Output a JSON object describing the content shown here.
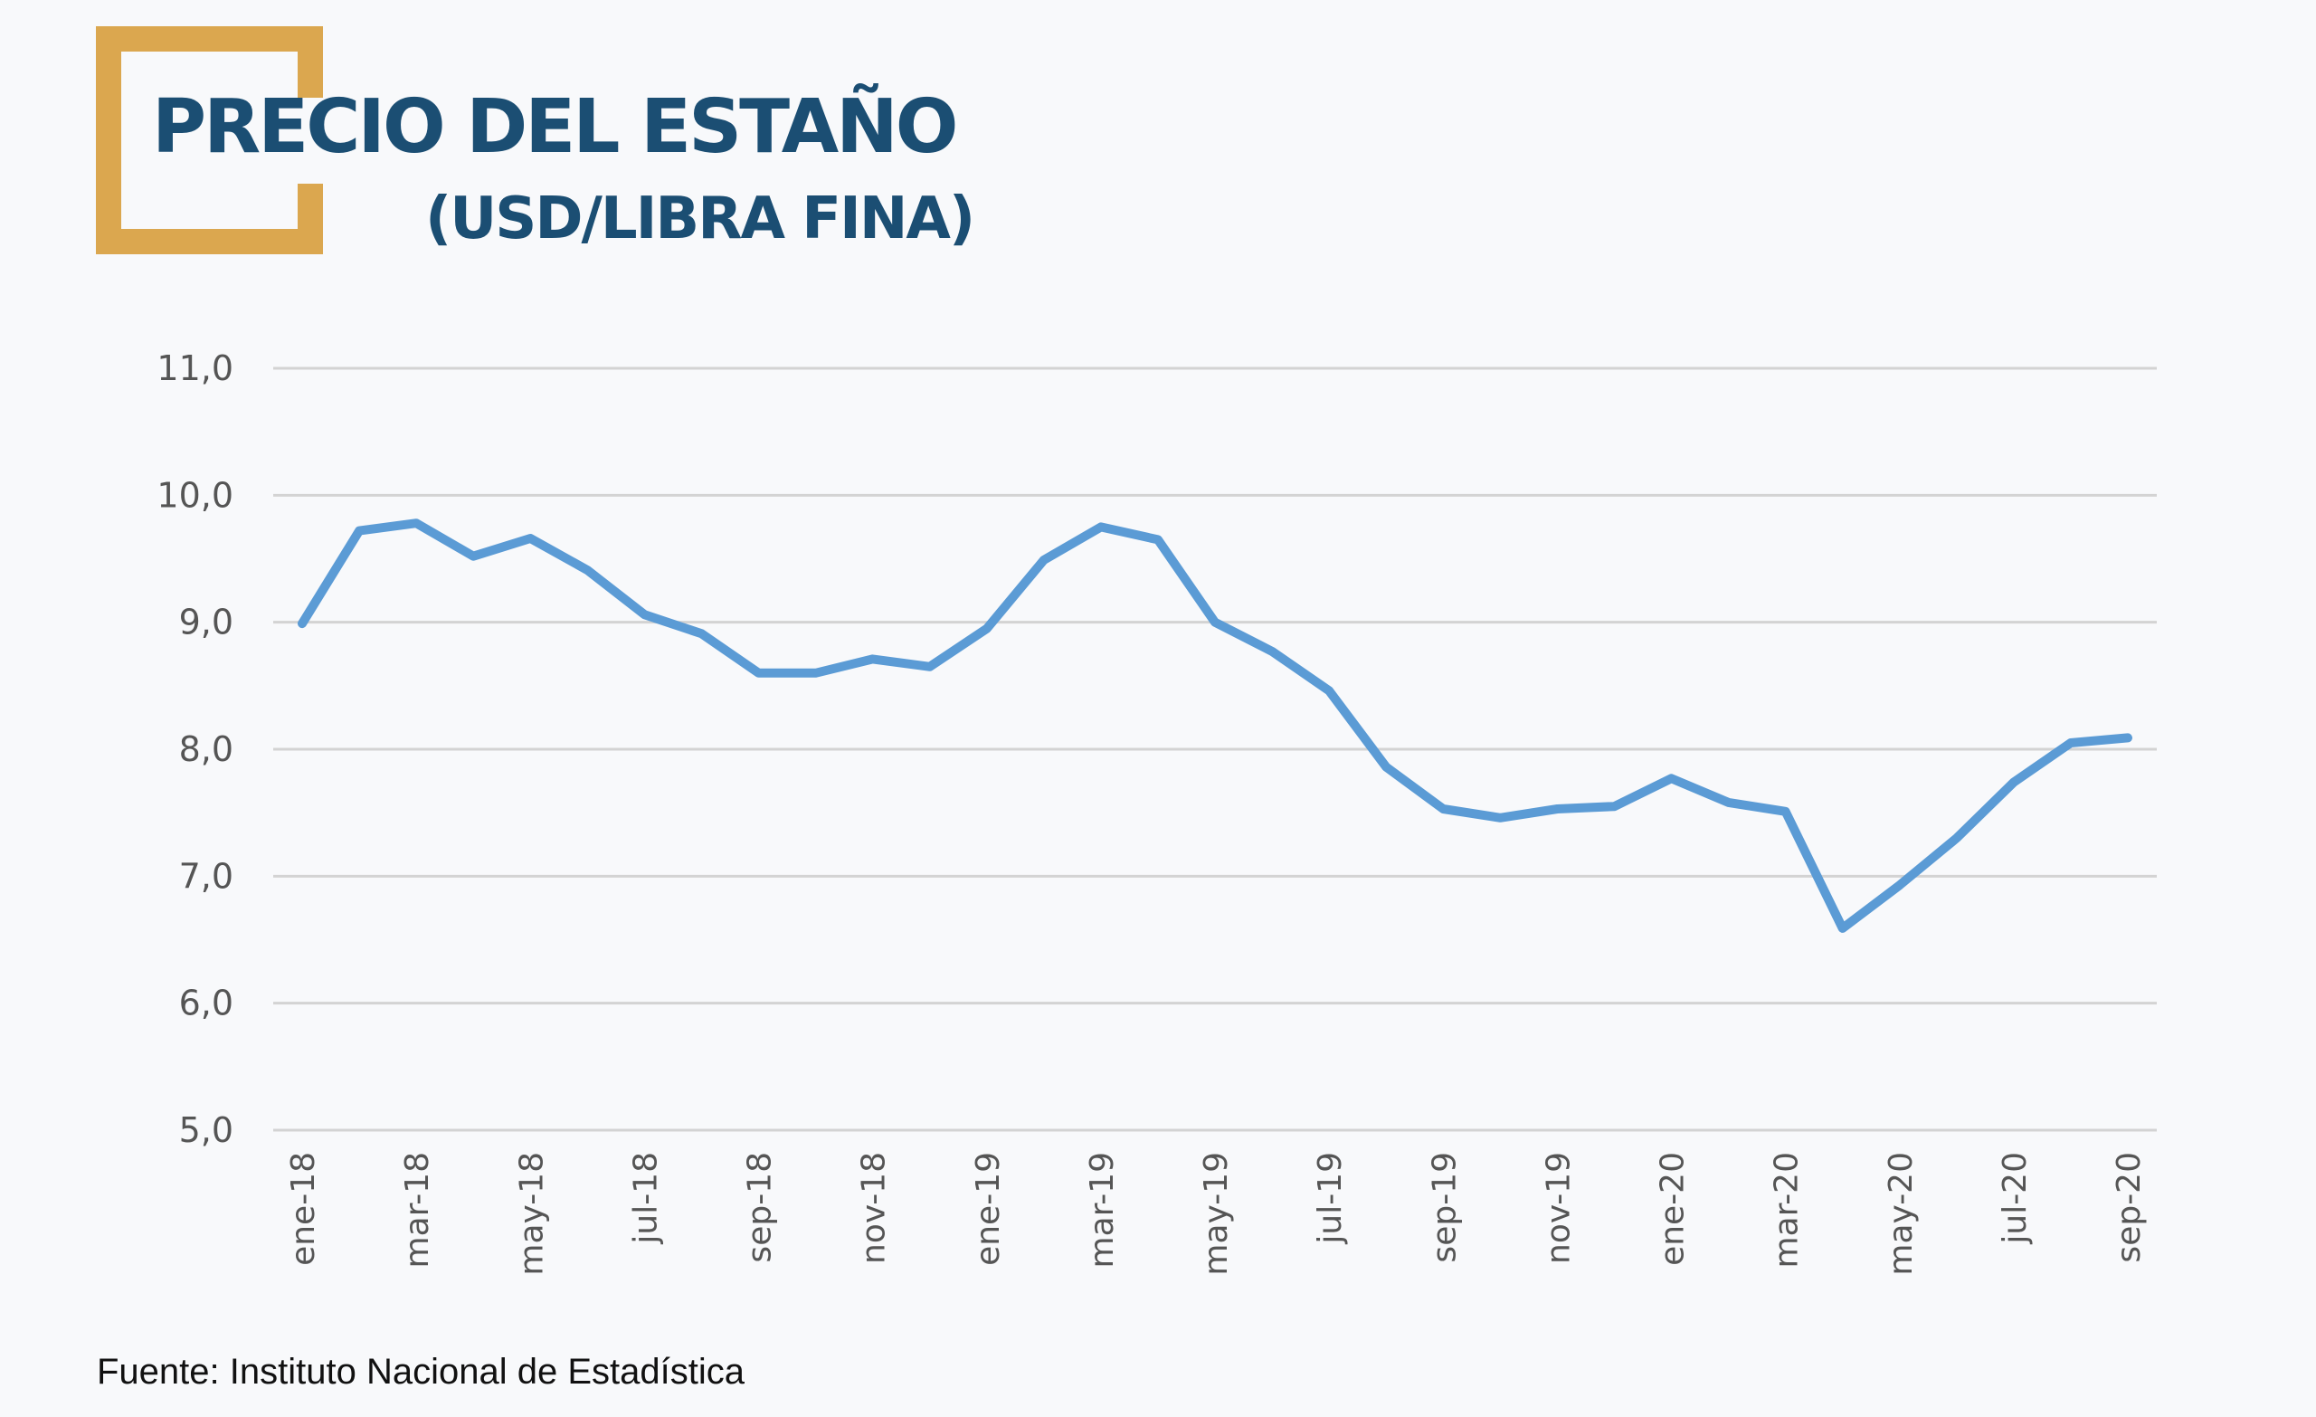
{
  "header": {
    "title": "PRECIO DEL ESTAÑO",
    "subtitle": "(USD/LIBRA FINA)",
    "accent_color": "#dba74f",
    "title_color": "#1b4e73"
  },
  "source_note": "Fuente: Instituto Nacional de Estadística",
  "chart_data": {
    "type": "line",
    "title": "PRECIO DEL ESTAÑO",
    "subtitle": "(USD/LIBRA FINA)",
    "xlabel": "",
    "ylabel": "",
    "ylim": [
      5.0,
      11.0
    ],
    "yticks": [
      "5,0",
      "6,0",
      "7,0",
      "8,0",
      "9,0",
      "10,0",
      "11,0"
    ],
    "ytick_values": [
      5,
      6,
      7,
      8,
      9,
      10,
      11
    ],
    "grid": true,
    "line_color": "#5b9bd5",
    "categories": [
      "ene-18",
      "feb-18",
      "mar-18",
      "abr-18",
      "may-18",
      "jun-18",
      "jul-18",
      "ago-18",
      "sep-18",
      "oct-18",
      "nov-18",
      "dic-18",
      "ene-19",
      "feb-19",
      "mar-19",
      "abr-19",
      "may-19",
      "jun-19",
      "jul-19",
      "ago-19",
      "sep-19",
      "oct-19",
      "nov-19",
      "dic-19",
      "ene-20",
      "feb-20",
      "mar-20",
      "abr-20",
      "may-20",
      "jun-20",
      "jul-20",
      "ago-20",
      "sep-20"
    ],
    "xtick_labels": [
      "ene-18",
      "mar-18",
      "may-18",
      "jul-18",
      "sep-18",
      "nov-18",
      "ene-19",
      "mar-19",
      "may-19",
      "jul-19",
      "sep-19",
      "nov-19",
      "ene-20",
      "mar-20",
      "may-20",
      "jul-20",
      "sep-20"
    ],
    "series": [
      {
        "values": [
          8.99,
          9.72,
          9.78,
          9.52,
          9.66,
          9.41,
          9.06,
          8.91,
          8.6,
          8.6,
          8.71,
          8.65,
          8.95,
          9.49,
          9.75,
          9.65,
          9.0,
          8.77,
          8.46,
          7.86,
          7.53,
          7.46,
          7.53,
          7.55,
          7.77,
          7.58,
          7.51,
          6.59,
          6.93,
          7.3,
          7.74,
          8.05,
          8.09
        ]
      }
    ]
  }
}
